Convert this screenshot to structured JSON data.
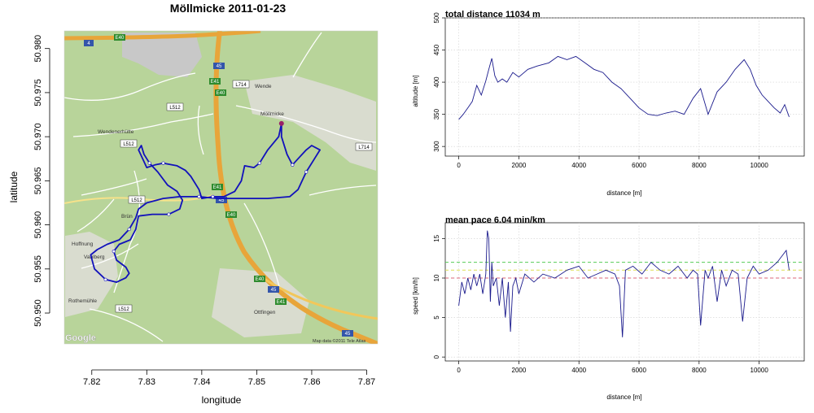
{
  "colors": {
    "route": "#1111bb",
    "map_bg": "#b8d49a",
    "road_major": "#e8a53a",
    "town_gray": "#c8c8c8",
    "line": "#1a1a8c",
    "grid": "#d0d0d0",
    "ref_green": "#55cc55",
    "ref_yellow": "#dddd55",
    "ref_red": "#dd6677"
  },
  "map_labels": {
    "road_e40_a": "E40",
    "road_e40_b": "E40",
    "road_e40_c": "E40",
    "road_e41_a": "E41",
    "road_e41_b": "E41",
    "road_e41_c": "E41",
    "road_45_a": "45",
    "road_45_b": "45",
    "road_45_c": "45",
    "road_45_d": "45",
    "road_4": "4",
    "l512_a": "L512",
    "l512_b": "L512",
    "l512_c": "L512",
    "l512_d": "L512",
    "l714_a": "L714",
    "l714_b": "L714",
    "town_moellmicke": "Möllmicke",
    "town_wendenerhuette": "Wendenerhütte",
    "town_bruen": "Brün",
    "town_hoffnung": "Hoffnung",
    "town_vahlberg": "Vahlberg",
    "town_rothemuehle": "Rothemühle",
    "town_ottfingen": "Ottfingen",
    "town_wende": "Wende",
    "google": "Google",
    "copyright": "Map data ©2011 Tele Atlas"
  },
  "chart_data": [
    {
      "type": "map-track",
      "title": "Möllmicke 2011-01-23",
      "xlabel": "longitude",
      "ylabel": "latitude",
      "xlim": [
        7.815,
        7.872
      ],
      "ylim": [
        50.9465,
        50.982
      ],
      "xticks": [
        7.82,
        7.83,
        7.84,
        7.85,
        7.86,
        7.87
      ],
      "yticks": [
        50.95,
        50.955,
        50.96,
        50.965,
        50.97,
        50.975,
        50.98
      ],
      "track": [
        [
          7.8545,
          50.9715
        ],
        [
          7.854,
          50.97
        ],
        [
          7.852,
          50.9685
        ],
        [
          7.8505,
          50.967
        ],
        [
          7.8495,
          50.9665
        ],
        [
          7.8478,
          50.9667
        ],
        [
          7.8472,
          50.965
        ],
        [
          7.846,
          50.9638
        ],
        [
          7.844,
          50.9632
        ],
        [
          7.842,
          50.9632
        ],
        [
          7.84,
          50.963
        ],
        [
          7.8395,
          50.964
        ],
        [
          7.838,
          50.9655
        ],
        [
          7.837,
          50.9662
        ],
        [
          7.8355,
          50.9667
        ],
        [
          7.833,
          50.967
        ],
        [
          7.8315,
          50.9668
        ],
        [
          7.83,
          50.9665
        ],
        [
          7.8285,
          50.9685
        ],
        [
          7.829,
          50.969
        ],
        [
          7.8295,
          50.968
        ],
        [
          7.8305,
          50.967
        ],
        [
          7.832,
          50.966
        ],
        [
          7.8338,
          50.9645
        ],
        [
          7.8355,
          50.9638
        ],
        [
          7.8365,
          50.9628
        ],
        [
          7.836,
          50.9618
        ],
        [
          7.834,
          50.9612
        ],
        [
          7.831,
          50.9612
        ],
        [
          7.8285,
          50.961
        ],
        [
          7.828,
          50.9595
        ],
        [
          7.827,
          50.9583
        ],
        [
          7.825,
          50.9578
        ],
        [
          7.824,
          50.957
        ],
        [
          7.8245,
          50.956
        ],
        [
          7.8262,
          50.9552
        ],
        [
          7.8268,
          50.9545
        ],
        [
          7.8262,
          50.954
        ],
        [
          7.8245,
          50.9535
        ],
        [
          7.8225,
          50.9538
        ],
        [
          7.8205,
          50.955
        ],
        [
          7.8198,
          50.9566
        ],
        [
          7.821,
          50.9572
        ],
        [
          7.8228,
          50.9578
        ],
        [
          7.825,
          50.9583
        ],
        [
          7.8268,
          50.9595
        ],
        [
          7.828,
          50.9608
        ],
        [
          7.8285,
          50.9618
        ],
        [
          7.83,
          50.9625
        ],
        [
          7.833,
          50.963
        ],
        [
          7.836,
          50.9632
        ],
        [
          7.8395,
          50.9632
        ],
        [
          7.843,
          50.963
        ],
        [
          7.847,
          50.963
        ],
        [
          7.852,
          50.963
        ],
        [
          7.856,
          50.9632
        ],
        [
          7.8575,
          50.964
        ],
        [
          7.859,
          50.966
        ],
        [
          7.8605,
          50.9675
        ],
        [
          7.8615,
          50.9685
        ],
        [
          7.86,
          50.969
        ],
        [
          7.859,
          50.9685
        ],
        [
          7.8575,
          50.9675
        ],
        [
          7.8565,
          50.9668
        ],
        [
          7.8555,
          50.968
        ],
        [
          7.8545,
          50.97
        ],
        [
          7.8545,
          50.9715
        ]
      ]
    },
    {
      "type": "line",
      "title": "total distance 11034 m",
      "xlabel": "distance [m]",
      "ylabel": "altitude [m]",
      "xlim": [
        -450,
        11500
      ],
      "ylim": [
        285,
        500
      ],
      "xticks": [
        0,
        2000,
        4000,
        6000,
        8000,
        10000
      ],
      "yticks": [
        300,
        350,
        400,
        450,
        500
      ],
      "grid": true,
      "x": [
        0,
        150,
        300,
        450,
        600,
        750,
        900,
        1000,
        1100,
        1200,
        1300,
        1450,
        1600,
        1800,
        2000,
        2300,
        2600,
        3000,
        3300,
        3600,
        3900,
        4200,
        4500,
        4800,
        5100,
        5400,
        5700,
        6000,
        6300,
        6600,
        6900,
        7200,
        7500,
        7800,
        8050,
        8300,
        8600,
        8900,
        9200,
        9500,
        9700,
        9900,
        10100,
        10300,
        10500,
        10700,
        10850,
        11000
      ],
      "y": [
        342,
        350,
        360,
        370,
        395,
        380,
        402,
        420,
        437,
        410,
        400,
        405,
        400,
        415,
        408,
        420,
        425,
        430,
        440,
        435,
        440,
        430,
        420,
        415,
        400,
        390,
        375,
        360,
        350,
        348,
        352,
        355,
        350,
        375,
        390,
        350,
        385,
        400,
        420,
        435,
        420,
        395,
        380,
        370,
        360,
        352,
        365,
        346
      ]
    },
    {
      "type": "line",
      "title": "mean pace 6.04 min/km",
      "xlabel": "distance [m]",
      "ylabel": "speed [km/h]",
      "xlim": [
        -450,
        11500
      ],
      "ylim": [
        -0.5,
        17
      ],
      "xticks": [
        0,
        2000,
        4000,
        6000,
        8000,
        10000
      ],
      "yticks": [
        0,
        5,
        10,
        15
      ],
      "grid": true,
      "reference_lines": [
        12,
        11,
        10
      ],
      "x": [
        0,
        100,
        200,
        300,
        400,
        500,
        600,
        700,
        800,
        900,
        950,
        1000,
        1050,
        1100,
        1150,
        1250,
        1350,
        1450,
        1550,
        1650,
        1720,
        1800,
        1900,
        2000,
        2200,
        2500,
        2800,
        3200,
        3600,
        4000,
        4300,
        4600,
        4900,
        5200,
        5350,
        5450,
        5550,
        5800,
        6100,
        6400,
        6700,
        7000,
        7300,
        7600,
        7800,
        7950,
        8050,
        8200,
        8300,
        8450,
        8600,
        8750,
        8900,
        9100,
        9300,
        9450,
        9600,
        9800,
        10000,
        10300,
        10600,
        10800,
        10900,
        11000
      ],
      "y": [
        6.5,
        9.5,
        8.0,
        10.0,
        8.5,
        10.5,
        9.0,
        10.5,
        8.0,
        10.5,
        16.0,
        15.0,
        7.0,
        12.0,
        9.0,
        10.0,
        6.5,
        10.0,
        5.0,
        9.5,
        3.2,
        9.0,
        10.0,
        8.0,
        10.5,
        9.5,
        10.5,
        10.0,
        11.0,
        11.5,
        10.0,
        10.5,
        11.0,
        10.5,
        9.0,
        2.5,
        11.0,
        11.5,
        10.5,
        12.0,
        11.0,
        10.5,
        11.5,
        10.0,
        11.0,
        10.5,
        4.0,
        11.0,
        10.0,
        11.5,
        7.0,
        11.0,
        9.0,
        11.0,
        10.5,
        4.5,
        10.0,
        11.5,
        10.5,
        11.0,
        12.0,
        13.0,
        13.5,
        11.0
      ]
    }
  ]
}
